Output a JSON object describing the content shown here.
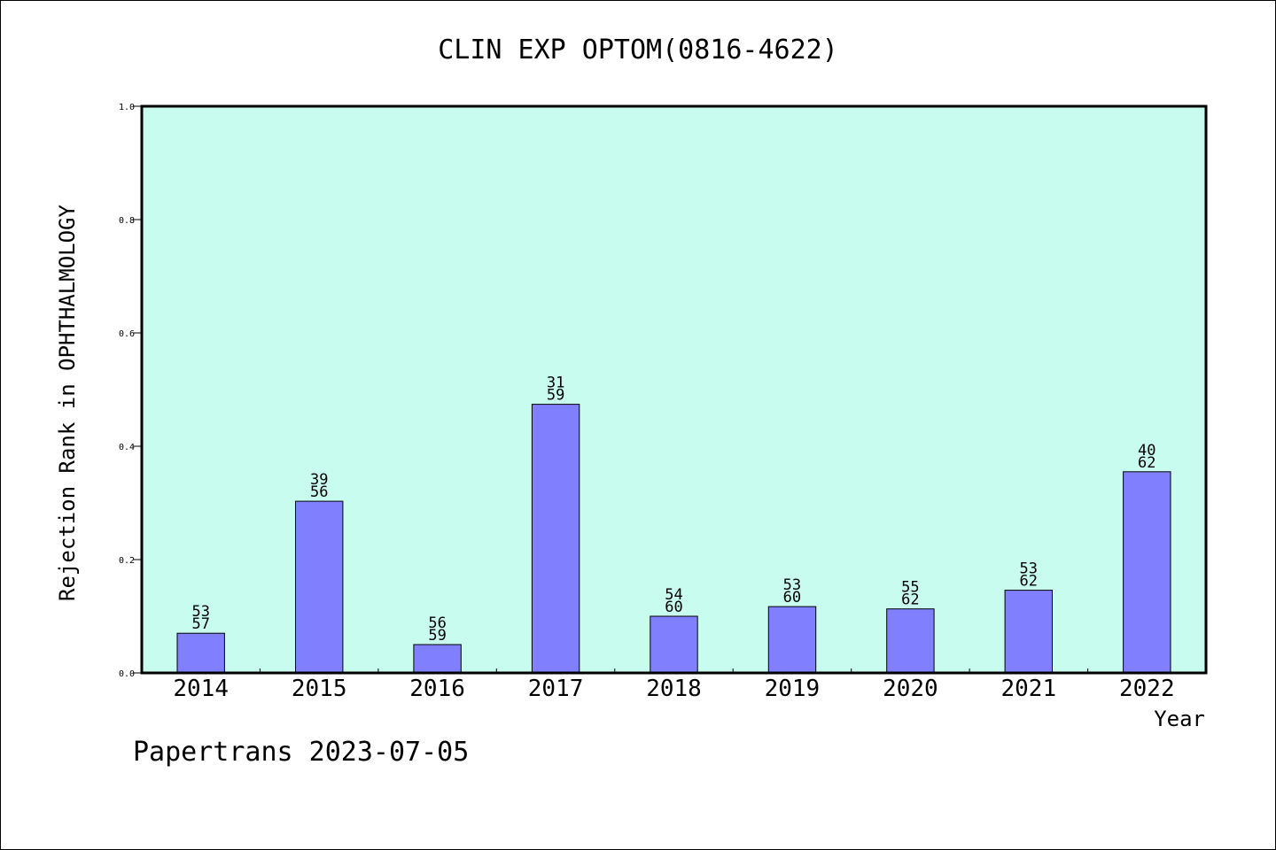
{
  "chart_data": {
    "type": "bar",
    "title": "CLIN EXP OPTOM(0816-4622)",
    "xlabel": "Year",
    "ylabel": "Rejection Rank in OPHTHALMOLOGY",
    "ylim": [
      0,
      1.0
    ],
    "yticks": [
      "0.0",
      "0.2",
      "0.4",
      "0.6",
      "0.8",
      "1.0"
    ],
    "categories": [
      "2014",
      "2015",
      "2016",
      "2017",
      "2018",
      "2019",
      "2020",
      "2021",
      "2022"
    ],
    "values": [
      0.07,
      0.303,
      0.05,
      0.474,
      0.1,
      0.117,
      0.113,
      0.146,
      0.355
    ],
    "labels_top": [
      "53",
      "39",
      "56",
      "31",
      "54",
      "53",
      "55",
      "53",
      "40"
    ],
    "labels_bottom": [
      "57",
      "56",
      "59",
      "59",
      "60",
      "60",
      "62",
      "62",
      "62"
    ],
    "grid": false,
    "colors": {
      "plot_background": "#c8fcee",
      "bar_fill": "#8080ff",
      "bar_stroke": "#000000"
    }
  },
  "footer": {
    "text": "Papertrans 2023-07-05"
  }
}
